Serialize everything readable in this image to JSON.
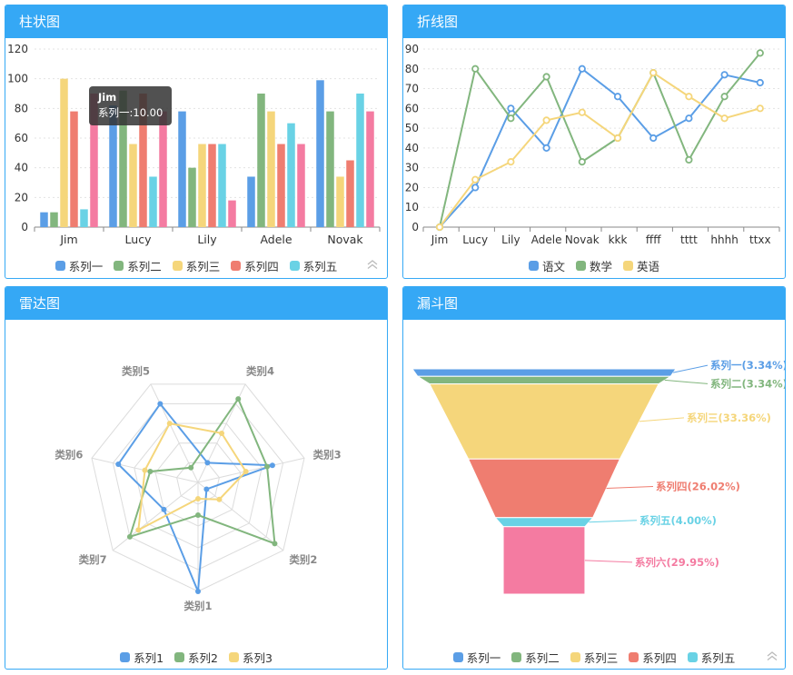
{
  "panels": {
    "bar_title": "柱状图",
    "line_title": "折线图",
    "radar_title": "雷达图",
    "funnel_title": "漏斗图"
  },
  "tooltip": {
    "title": "Jim",
    "text": "系列一:10.00"
  },
  "colors": [
    "#5b9ee6",
    "#82b67e",
    "#f5d67b",
    "#ef7d70",
    "#69d2e5",
    "#f47ba1"
  ],
  "chart_data": [
    {
      "type": "bar",
      "title": "柱状图",
      "categories": [
        "Jim",
        "Lucy",
        "Lily",
        "Adele",
        "Novak"
      ],
      "ylim": [
        0,
        120
      ],
      "yticks": [
        0,
        20,
        40,
        60,
        80,
        100,
        120
      ],
      "grid": true,
      "legend": "bottom",
      "series": [
        {
          "name": "系列一",
          "values": [
            10,
            82,
            78,
            34,
            99
          ]
        },
        {
          "name": "系列二",
          "values": [
            10,
            92,
            40,
            90,
            78
          ]
        },
        {
          "name": "系列三",
          "values": [
            100,
            56,
            56,
            78,
            34
          ]
        },
        {
          "name": "系列四",
          "values": [
            78,
            90,
            56,
            56,
            45
          ]
        },
        {
          "name": "系列五",
          "values": [
            12,
            34,
            56,
            70,
            90
          ]
        },
        {
          "name": "",
          "values": [
            90,
            78,
            18,
            56,
            78
          ]
        }
      ]
    },
    {
      "type": "line",
      "title": "折线图",
      "categories": [
        "Jim",
        "Lucy",
        "Lily",
        "Adele",
        "Novak",
        "kkk",
        "ffff",
        "tttt",
        "hhhh",
        "ttxx"
      ],
      "ylim": [
        0,
        90
      ],
      "yticks": [
        0,
        10,
        20,
        30,
        40,
        50,
        60,
        70,
        80,
        90
      ],
      "grid": true,
      "legend": "bottom",
      "series": [
        {
          "name": "语文",
          "values": [
            0,
            20,
            60,
            40,
            80,
            66,
            45,
            55,
            77,
            73
          ]
        },
        {
          "name": "数学",
          "values": [
            0,
            80,
            55,
            76,
            33,
            45,
            78,
            34,
            66,
            88
          ]
        },
        {
          "name": "英语",
          "values": [
            0,
            24,
            33,
            54,
            58,
            45,
            78,
            66,
            55,
            60
          ]
        }
      ]
    },
    {
      "type": "radar",
      "title": "雷达图",
      "indicators": [
        "类别1",
        "类别2",
        "类别3",
        "类别4",
        "类别5",
        "类别6",
        "类别7"
      ],
      "max": 100,
      "legend": "bottom",
      "series": [
        {
          "name": "系列1",
          "values": [
            100,
            10,
            70,
            20,
            80,
            75,
            40
          ]
        },
        {
          "name": "系列2",
          "values": [
            30,
            90,
            65,
            85,
            15,
            45,
            80
          ]
        },
        {
          "name": "系列3",
          "values": [
            15,
            25,
            45,
            50,
            60,
            50,
            70
          ]
        }
      ]
    },
    {
      "type": "funnel",
      "title": "漏斗图",
      "legend": "bottom",
      "series": [
        {
          "name": "系列一",
          "label": "系列一(3.34%)",
          "value": 3.34
        },
        {
          "name": "系列二",
          "label": "系列二(3.34%)",
          "value": 3.34
        },
        {
          "name": "系列三",
          "label": "系列三(33.36%)",
          "value": 33.36
        },
        {
          "name": "系列四",
          "label": "系列四(26.02%)",
          "value": 26.02
        },
        {
          "name": "系列五",
          "label": "系列五(4.00%)",
          "value": 4.0
        },
        {
          "name": "系列六",
          "label": "系列六(29.95%)",
          "value": 29.95
        }
      ]
    }
  ]
}
